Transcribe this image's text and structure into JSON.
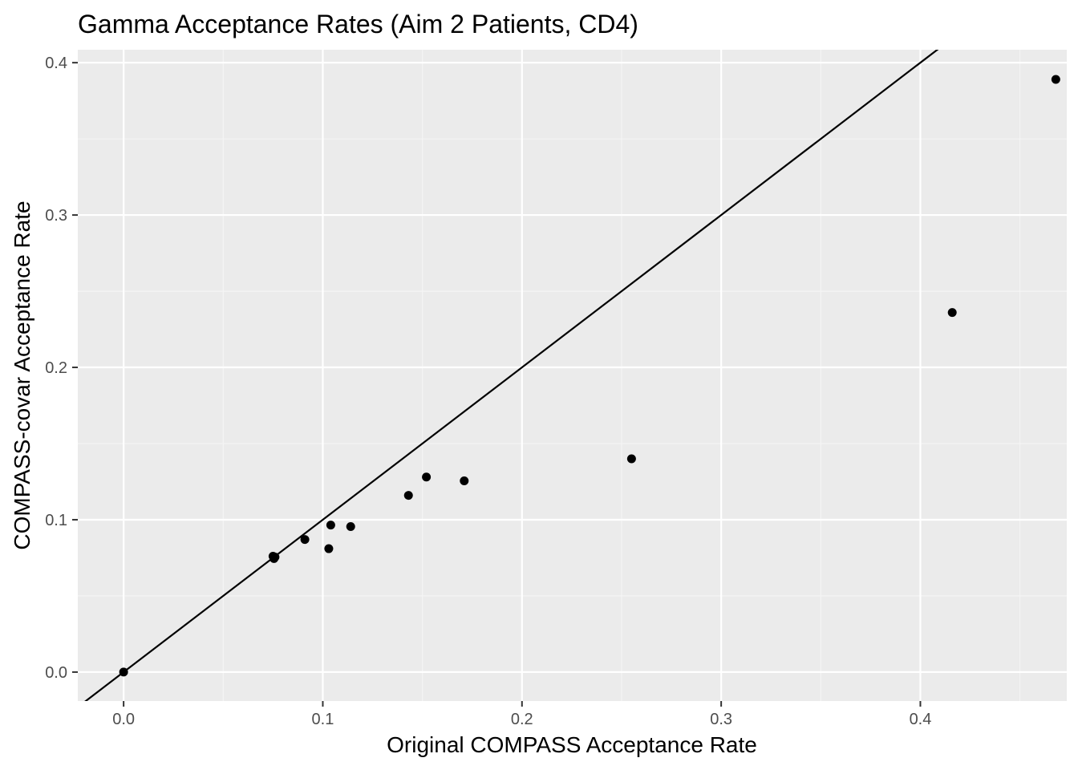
{
  "chart_data": {
    "type": "scatter",
    "title": "Gamma Acceptance Rates (Aim 2 Patients, CD4)",
    "xlabel": "Original COMPASS Acceptance Rate",
    "ylabel": "COMPASS-covar Acceptance Rate",
    "xlim": [
      -0.023,
      0.4735
    ],
    "ylim": [
      -0.019,
      0.4085
    ],
    "x_ticks": [
      0.0,
      0.1,
      0.2,
      0.3,
      0.4
    ],
    "x_tick_labels": [
      "0.0",
      "0.1",
      "0.2",
      "0.3",
      "0.4"
    ],
    "x_minor_ticks": [
      0.05,
      0.15,
      0.25,
      0.35,
      0.45
    ],
    "y_ticks": [
      0.0,
      0.1,
      0.2,
      0.3,
      0.4
    ],
    "y_tick_labels": [
      "0.0",
      "0.1",
      "0.2",
      "0.3",
      "0.4"
    ],
    "y_minor_ticks": [
      0.05,
      0.15,
      0.25,
      0.35
    ],
    "grid": true,
    "reference_line": {
      "slope": 1,
      "intercept": 0
    },
    "points": [
      {
        "x": 0.0,
        "y": 0.0
      },
      {
        "x": 0.075,
        "y": 0.076
      },
      {
        "x": 0.0755,
        "y": 0.0745
      },
      {
        "x": 0.076,
        "y": 0.0755
      },
      {
        "x": 0.091,
        "y": 0.087
      },
      {
        "x": 0.103,
        "y": 0.081
      },
      {
        "x": 0.104,
        "y": 0.0965
      },
      {
        "x": 0.114,
        "y": 0.0955
      },
      {
        "x": 0.143,
        "y": 0.116
      },
      {
        "x": 0.152,
        "y": 0.128
      },
      {
        "x": 0.171,
        "y": 0.1255
      },
      {
        "x": 0.255,
        "y": 0.14
      },
      {
        "x": 0.416,
        "y": 0.236
      },
      {
        "x": 0.468,
        "y": 0.389
      }
    ]
  },
  "colors": {
    "panel_background": "#ebebeb",
    "grid_major": "#ffffff",
    "grid_minor": "#f5f5f5",
    "point": "#000000",
    "reference_line": "#000000",
    "tick_text": "#4d4d4d"
  }
}
